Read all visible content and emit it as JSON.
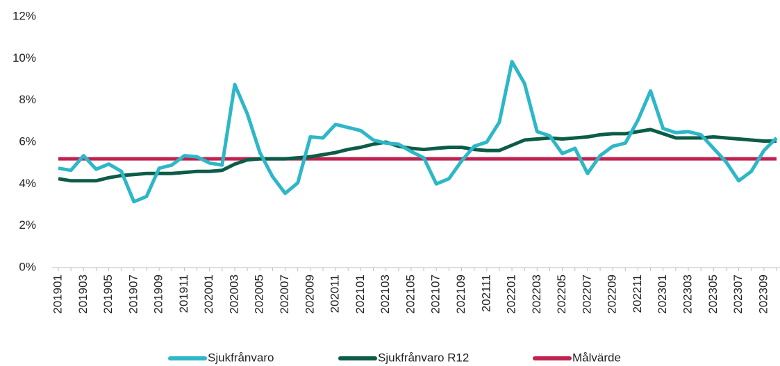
{
  "chart_data": {
    "type": "line",
    "categories": [
      "201901",
      null,
      "201903",
      null,
      "201905",
      null,
      "201907",
      null,
      "201909",
      null,
      "201911",
      null,
      "202001",
      null,
      "202003",
      null,
      "202005",
      null,
      "202007",
      null,
      "202009",
      null,
      "202011",
      null,
      "202101",
      null,
      "202103",
      null,
      "202105",
      null,
      "202107",
      null,
      "202109",
      null,
      "202111",
      null,
      "202201",
      null,
      "202203",
      null,
      "202205",
      null,
      "202207",
      null,
      "202209",
      null,
      "202211",
      null,
      "202301",
      null,
      "202303",
      null,
      "202305",
      null,
      "202307",
      null,
      "202309",
      null
    ],
    "series": [
      {
        "name": "Sjukfrånvaro",
        "color": "#2db7c8",
        "values": [
          4.75,
          4.65,
          5.35,
          4.7,
          4.95,
          4.6,
          3.15,
          3.4,
          4.75,
          4.9,
          5.35,
          5.3,
          5.0,
          4.9,
          8.75,
          7.35,
          5.5,
          4.35,
          3.55,
          4.05,
          6.25,
          6.2,
          6.85,
          6.7,
          6.55,
          6.1,
          5.95,
          5.9,
          5.55,
          5.25,
          4.0,
          4.25,
          5.1,
          5.8,
          6.0,
          6.95,
          9.85,
          8.8,
          6.5,
          6.3,
          5.45,
          5.7,
          4.5,
          5.35,
          5.8,
          5.95,
          7.05,
          8.45,
          6.65,
          6.45,
          6.5,
          6.35,
          5.7,
          5.05,
          4.15,
          4.6,
          5.6,
          6.2
        ]
      },
      {
        "name": "Sjukfrånvaro R12",
        "color": "#0c5c47",
        "values": [
          4.25,
          4.15,
          4.15,
          4.15,
          4.3,
          4.4,
          4.45,
          4.5,
          4.5,
          4.5,
          4.55,
          4.6,
          4.6,
          4.65,
          4.95,
          5.15,
          5.2,
          5.2,
          5.2,
          5.25,
          5.3,
          5.4,
          5.5,
          5.65,
          5.75,
          5.9,
          6.0,
          5.8,
          5.7,
          5.65,
          5.7,
          5.75,
          5.75,
          5.65,
          5.6,
          5.6,
          5.85,
          6.1,
          6.15,
          6.2,
          6.15,
          6.2,
          6.25,
          6.35,
          6.4,
          6.4,
          6.5,
          6.6,
          6.4,
          6.2,
          6.2,
          6.2,
          6.25,
          6.2,
          6.15,
          6.1,
          6.05,
          6.05
        ]
      },
      {
        "name": "Målvärde",
        "color": "#c0224f",
        "values": [
          5.2,
          5.2,
          5.2,
          5.2,
          5.2,
          5.2,
          5.2,
          5.2,
          5.2,
          5.2,
          5.2,
          5.2,
          5.2,
          5.2,
          5.2,
          5.2,
          5.2,
          5.2,
          5.2,
          5.2,
          5.2,
          5.2,
          5.2,
          5.2,
          5.2,
          5.2,
          5.2,
          5.2,
          5.2,
          5.2,
          5.2,
          5.2,
          5.2,
          5.2,
          5.2,
          5.2,
          5.2,
          5.2,
          5.2,
          5.2,
          5.2,
          5.2,
          5.2,
          5.2,
          5.2,
          5.2,
          5.2,
          5.2,
          5.2,
          5.2,
          5.2,
          5.2,
          5.2,
          5.2,
          5.2,
          5.2,
          5.2,
          5.2
        ]
      }
    ],
    "ylim": [
      0,
      12
    ],
    "yticks": [
      {
        "value": 0,
        "label": "0%"
      },
      {
        "value": 2,
        "label": "2%"
      },
      {
        "value": 4,
        "label": "4%"
      },
      {
        "value": 6,
        "label": "6%"
      },
      {
        "value": 8,
        "label": "8%"
      },
      {
        "value": 10,
        "label": "10%"
      },
      {
        "value": 12,
        "label": "12%"
      }
    ],
    "legend": "bottom"
  }
}
